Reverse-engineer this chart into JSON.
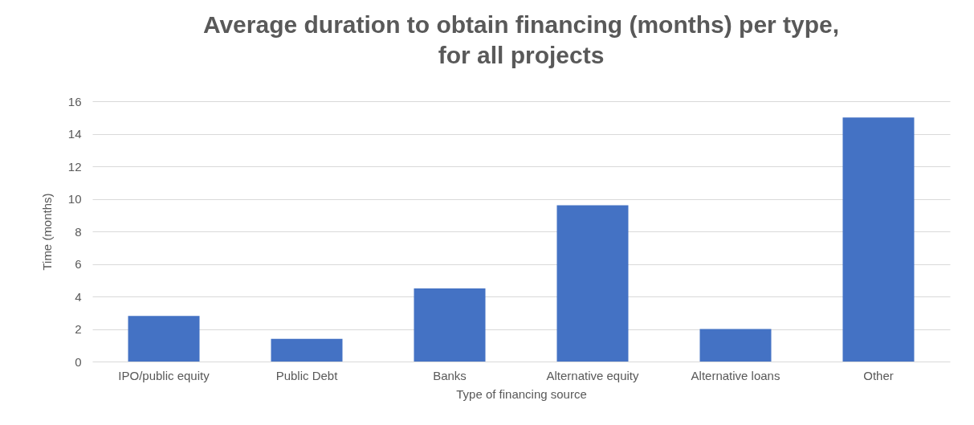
{
  "chart_data": {
    "type": "bar",
    "title": "Average duration to obtain financing (months) per type, for all projects",
    "xlabel": "Type of financing source",
    "ylabel": "Time (months)",
    "categories": [
      "IPO/public equity",
      "Public Debt",
      "Banks",
      "Alternative  equity",
      "Alternative  loans",
      "Other"
    ],
    "values": [
      2.8,
      1.4,
      4.5,
      9.6,
      2.0,
      15.0
    ],
    "color": "#4472c4",
    "ylim": [
      0,
      16
    ],
    "yticks": [
      0,
      2,
      4,
      6,
      8,
      10,
      12,
      14,
      16
    ],
    "grid": "y",
    "legend": false
  }
}
